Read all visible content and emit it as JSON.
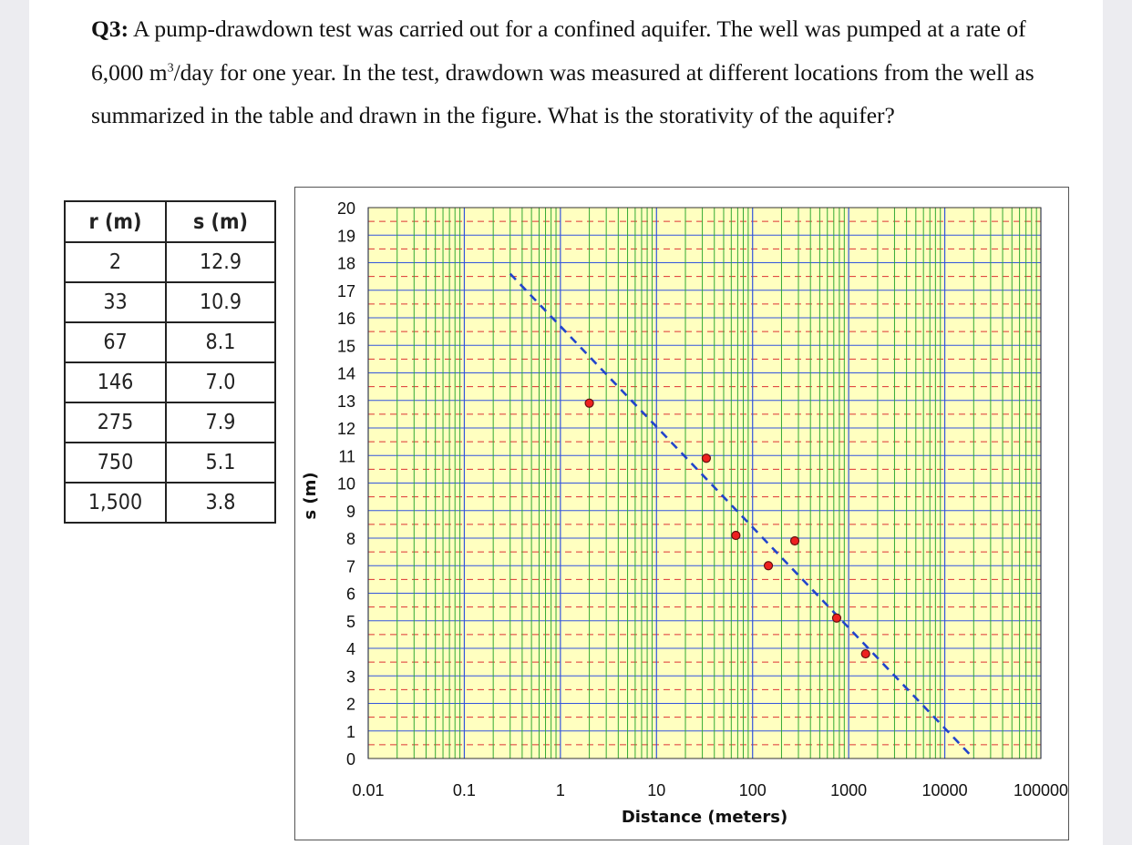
{
  "question": {
    "label": "Q3:",
    "text_part1": " A pump-drawdown test was carried out for a confined aquifer. The well was pumped at a rate of 6,000 m",
    "superscript": "3",
    "text_part2": "/day for one year. In the test, drawdown was measured at different locations from the well as summarized in the table and drawn in the figure. What is the storativity of the aquifer?"
  },
  "table": {
    "headers": [
      "r (m)",
      "s (m)"
    ],
    "rows": [
      [
        "2",
        "12.9"
      ],
      [
        "33",
        "10.9"
      ],
      [
        "67",
        "8.1"
      ],
      [
        "146",
        "7.0"
      ],
      [
        "275",
        "7.9"
      ],
      [
        "750",
        "5.1"
      ],
      [
        "1,500",
        "3.8"
      ]
    ]
  },
  "chart_data": {
    "type": "scatter",
    "xscale": "log",
    "xlim": [
      0.01,
      100000
    ],
    "ylim": [
      0,
      20
    ],
    "xlabel": "Distance (meters)",
    "ylabel": "s (m)",
    "x_tick_labels": [
      "0.01",
      "0.1",
      "1",
      "10",
      "100",
      "1000",
      "10000",
      "100000"
    ],
    "y_tick_labels": [
      "0",
      "1",
      "2",
      "3",
      "4",
      "5",
      "6",
      "7",
      "8",
      "9",
      "10",
      "11",
      "12",
      "13",
      "14",
      "15",
      "16",
      "17",
      "18",
      "19",
      "20"
    ],
    "grid": true,
    "points": [
      {
        "x": 2,
        "y": 12.9
      },
      {
        "x": 33,
        "y": 10.9
      },
      {
        "x": 67,
        "y": 8.1
      },
      {
        "x": 146,
        "y": 7.0
      },
      {
        "x": 275,
        "y": 7.9
      },
      {
        "x": 750,
        "y": 5.1
      },
      {
        "x": 1500,
        "y": 3.8
      }
    ],
    "fit_line": {
      "x": [
        0.3,
        20000
      ],
      "y": [
        17.6,
        0
      ]
    },
    "colors": {
      "plot_background": "#ffffc0",
      "grid_major": "#3355dd",
      "grid_minor": "#33aa33",
      "grid_dashed": "#dd3333",
      "point_fill": "#ee2020",
      "fit_line": "#2244cc"
    }
  }
}
